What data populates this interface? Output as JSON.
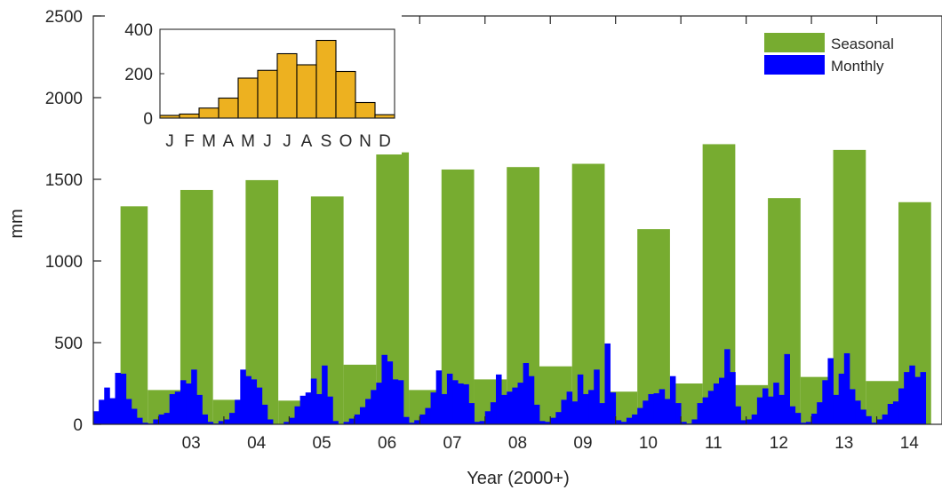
{
  "chart_data": [
    {
      "type": "bar",
      "xlabel": "Year (2000+)",
      "ylabel": "mm",
      "ylim": [
        0,
        2500
      ],
      "yticks": [
        0,
        500,
        1000,
        1500,
        2000,
        2500
      ],
      "xticks": [
        "03",
        "04",
        "05",
        "06",
        "07",
        "08",
        "09",
        "10",
        "11",
        "12",
        "13",
        "14"
      ],
      "legend": {
        "placement": "top-right",
        "entries": [
          "Seasonal",
          "Monthly"
        ]
      },
      "series": [
        {
          "name": "Seasonal",
          "color": "#77ac30",
          "segments": [
            {
              "start": "2002-06",
              "end": "2002-11",
              "value": 1335
            },
            {
              "start": "2002-11",
              "end": "2003-05",
              "value": 210
            },
            {
              "start": "2003-05",
              "end": "2003-11",
              "value": 1435
            },
            {
              "start": "2003-11",
              "end": "2004-05",
              "value": 150
            },
            {
              "start": "2004-05",
              "end": "2004-11",
              "value": 1495
            },
            {
              "start": "2004-11",
              "end": "2005-05",
              "value": 145
            },
            {
              "start": "2005-05",
              "end": "2005-11",
              "value": 1395
            },
            {
              "start": "2005-11",
              "end": "2006-05",
              "value": 365
            },
            {
              "start": "2006-05",
              "end": "2006-11",
              "value": 1665
            },
            {
              "start": "2006-11",
              "end": "2007-05",
              "value": 210
            },
            {
              "start": "2007-05",
              "end": "2007-11",
              "value": 1560
            },
            {
              "start": "2007-11",
              "end": "2008-05",
              "value": 275
            },
            {
              "start": "2008-05",
              "end": "2008-11",
              "value": 1575
            },
            {
              "start": "2008-11",
              "end": "2009-05",
              "value": 355
            },
            {
              "start": "2009-05",
              "end": "2009-11",
              "value": 1595
            },
            {
              "start": "2009-11",
              "end": "2010-05",
              "value": 200
            },
            {
              "start": "2010-05",
              "end": "2010-11",
              "value": 1195
            },
            {
              "start": "2010-11",
              "end": "2011-05",
              "value": 250
            },
            {
              "start": "2011-05",
              "end": "2011-11",
              "value": 1715
            },
            {
              "start": "2011-11",
              "end": "2012-05",
              "value": 240
            },
            {
              "start": "2012-05",
              "end": "2012-11",
              "value": 1385
            },
            {
              "start": "2012-11",
              "end": "2013-05",
              "value": 290
            },
            {
              "start": "2013-05",
              "end": "2013-11",
              "value": 1680
            },
            {
              "start": "2013-11",
              "end": "2014-05",
              "value": 265
            },
            {
              "start": "2014-05",
              "end": "2014-11",
              "value": 1360
            }
          ]
        },
        {
          "name": "Monthly",
          "color": "#0000ff",
          "start": "2002-01",
          "values": [
            80,
            150,
            225,
            160,
            315,
            310,
            155,
            95,
            40,
            10,
            5,
            30,
            60,
            70,
            185,
            200,
            270,
            250,
            335,
            180,
            60,
            15,
            5,
            20,
            30,
            70,
            150,
            335,
            295,
            275,
            225,
            120,
            30,
            0,
            0,
            15,
            40,
            110,
            175,
            195,
            280,
            185,
            360,
            170,
            20,
            0,
            15,
            35,
            60,
            105,
            155,
            210,
            255,
            425,
            385,
            275,
            270,
            45,
            10,
            25,
            60,
            100,
            195,
            330,
            185,
            310,
            270,
            250,
            245,
            130,
            15,
            20,
            80,
            135,
            305,
            180,
            200,
            225,
            255,
            375,
            295,
            120,
            20,
            15,
            40,
            75,
            150,
            200,
            140,
            305,
            185,
            210,
            335,
            130,
            495,
            195,
            25,
            15,
            40,
            60,
            100,
            145,
            185,
            190,
            215,
            155,
            295,
            130,
            15,
            5,
            30,
            130,
            165,
            205,
            250,
            285,
            460,
            320,
            110,
            25,
            30,
            60,
            165,
            220,
            170,
            255,
            180,
            430,
            110,
            70,
            10,
            15,
            65,
            135,
            270,
            405,
            180,
            310,
            435,
            215,
            145,
            90,
            50,
            10,
            30,
            60,
            125,
            140,
            220,
            320,
            360,
            290,
            320
          ]
        }
      ]
    },
    {
      "type": "bar",
      "categories": [
        "J",
        "F",
        "M",
        "A",
        "M",
        "J",
        "J",
        "A",
        "S",
        "O",
        "N",
        "D"
      ],
      "values": [
        12,
        18,
        45,
        90,
        180,
        215,
        290,
        240,
        350,
        210,
        70,
        15
      ],
      "ylim": [
        0,
        400
      ],
      "yticks": [
        0,
        200,
        400
      ],
      "color": "#edb120"
    }
  ]
}
